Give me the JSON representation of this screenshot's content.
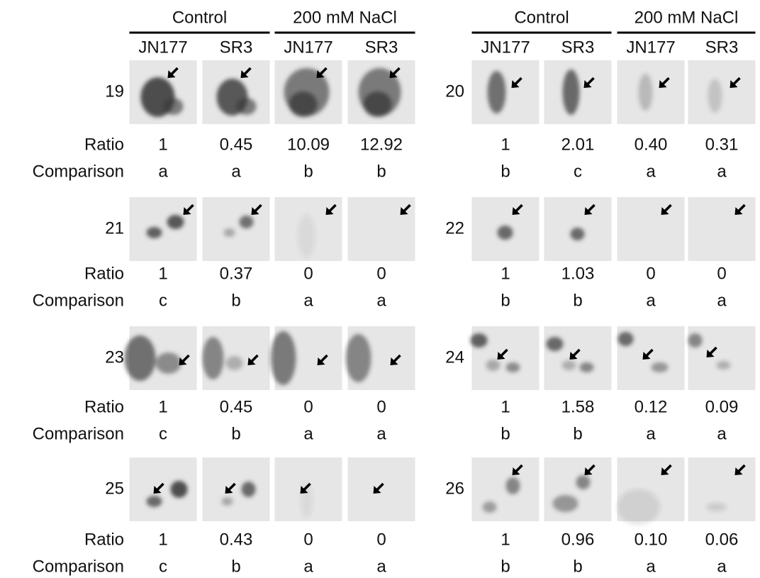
{
  "row_labels": [
    "Ratio",
    "Comparison"
  ],
  "panels": [
    {
      "header_groups": [
        "Control",
        "200 mM NaCl"
      ],
      "columns": [
        "JN177",
        "SR3",
        "JN177",
        "SR3"
      ],
      "spots": [
        {
          "id": "19",
          "ratio": [
            "1",
            "0.45",
            "10.09",
            "12.92"
          ],
          "comparison": [
            "a",
            "a",
            "b",
            "b"
          ]
        },
        {
          "id": "21",
          "ratio": [
            "1",
            "0.37",
            "0",
            "0"
          ],
          "comparison": [
            "c",
            "b",
            "a",
            "a"
          ]
        },
        {
          "id": "23",
          "ratio": [
            "1",
            "0.45",
            "0",
            "0"
          ],
          "comparison": [
            "c",
            "b",
            "a",
            "a"
          ]
        },
        {
          "id": "25",
          "ratio": [
            "1",
            "0.43",
            "0",
            "0"
          ],
          "comparison": [
            "c",
            "b",
            "a",
            "a"
          ]
        }
      ]
    },
    {
      "header_groups": [
        "Control",
        "200 mM NaCl"
      ],
      "columns": [
        "JN177",
        "SR3",
        "JN177",
        "SR3"
      ],
      "spots": [
        {
          "id": "20",
          "ratio": [
            "1",
            "2.01",
            "0.40",
            "0.31"
          ],
          "comparison": [
            "b",
            "c",
            "a",
            "a"
          ]
        },
        {
          "id": "22",
          "ratio": [
            "1",
            "1.03",
            "0",
            "0"
          ],
          "comparison": [
            "b",
            "b",
            "a",
            "a"
          ]
        },
        {
          "id": "24",
          "ratio": [
            "1",
            "1.58",
            "0.12",
            "0.09"
          ],
          "comparison": [
            "b",
            "b",
            "a",
            "a"
          ]
        },
        {
          "id": "26",
          "ratio": [
            "1",
            "0.96",
            "0.10",
            "0.06"
          ],
          "comparison": [
            "b",
            "b",
            "a",
            "a"
          ]
        }
      ]
    }
  ]
}
